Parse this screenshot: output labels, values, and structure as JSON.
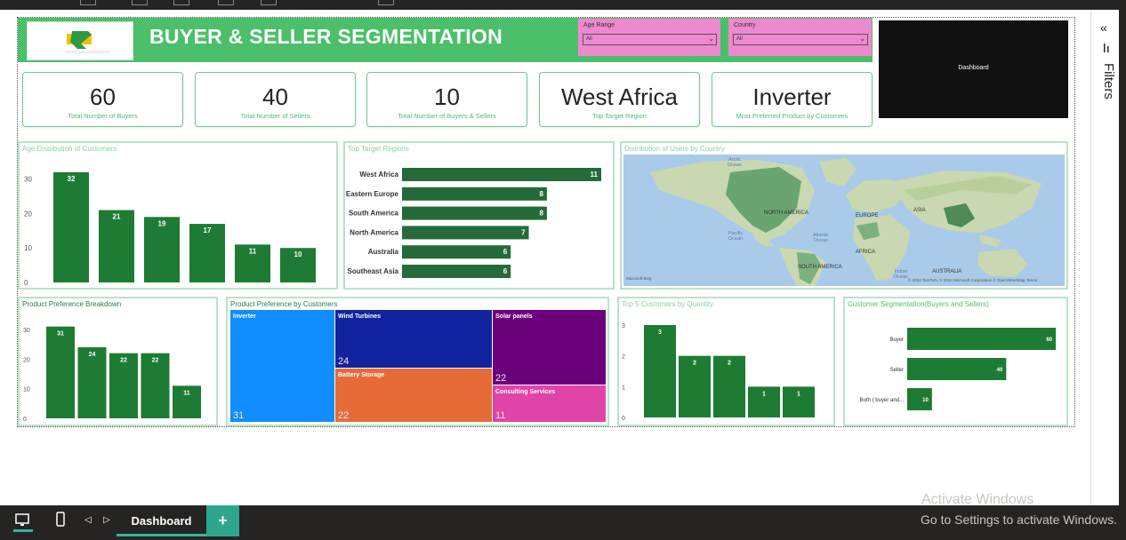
{
  "header": {
    "title": "BUYER & SELLER SEGMENTATION",
    "logo_text": "RENERGY HUB",
    "brand_color": "#4cbf6a"
  },
  "slicers": [
    {
      "title": "Age Range",
      "value": "All"
    },
    {
      "title": "Country",
      "value": "All"
    }
  ],
  "dashboard_button": "Dashboard",
  "kpis": [
    {
      "value": "60",
      "label": "Total Number of Buyers"
    },
    {
      "value": "40",
      "label": "Total Number of Sellers"
    },
    {
      "value": "10",
      "label": "Total Number of  Buyers & Sellers"
    },
    {
      "value": "West Africa",
      "label": "Top Target Region"
    },
    {
      "value": "Inverter",
      "label": "Most Preferred Product by Customers"
    }
  ],
  "filters_pane": {
    "label": "Filters",
    "collapse_icon": "chevron-double-left-icon"
  },
  "charts": {
    "age_distribution": {
      "title": "Age Distribution of Customers",
      "chart_data": {
        "type": "bar",
        "values": [
          32,
          21,
          19,
          17,
          11,
          10
        ],
        "yticks": [
          "30",
          "20",
          "10",
          "0"
        ],
        "ylim": [
          0,
          33
        ]
      }
    },
    "top_regions": {
      "title": "Top Target Regions",
      "chart_data": {
        "type": "bar",
        "orientation": "horizontal",
        "categories": [
          "West Africa",
          "Eastern Europe",
          "South America",
          "North America",
          "Australia",
          "Southeast Asia"
        ],
        "values": [
          11,
          8,
          8,
          7,
          6,
          6
        ]
      }
    },
    "users_map": {
      "title": "Distribution of Users by Country",
      "labels": [
        "NORTH AMERICA",
        "EUROPE",
        "ASIA",
        "AFRICA",
        "SOUTH AMERICA",
        "AUSTRALIA"
      ],
      "oceans": [
        "Arctic Ocean",
        "Pacific Ocean",
        "Atlantic Ocean",
        "Indian Ocean"
      ],
      "attribution": "© 2024 TomTom, © 2024 Microsoft Corporation  © OpenStreetMap  Terms",
      "bing": "Microsoft Bing"
    },
    "product_breakdown": {
      "title": "Product Preference Breakdown",
      "chart_data": {
        "type": "bar",
        "values": [
          31,
          24,
          22,
          22,
          11
        ],
        "yticks": [
          "30",
          "20",
          "10",
          "0"
        ],
        "ylim": [
          0,
          33
        ]
      }
    },
    "product_treemap": {
      "title": "Product Preference by Customers",
      "chart_data": {
        "type": "treemap",
        "categories": [
          "Inverter",
          "Wind Turbines",
          "Solar panels",
          "Battery Storage",
          "Consulting Services"
        ],
        "values": [
          31,
          24,
          22,
          22,
          11
        ]
      },
      "colors": [
        "#118dff",
        "#12239e",
        "#6b007b",
        "#e66c37",
        "#e044a7"
      ]
    },
    "top5_customers": {
      "title": "Top 5 Customers by Quantity",
      "chart_data": {
        "type": "bar",
        "values": [
          3,
          2,
          2,
          1,
          1
        ],
        "yticks": [
          "3",
          "2",
          "1",
          "0"
        ],
        "ylim": [
          0,
          3
        ]
      }
    },
    "segmentation": {
      "title": "Customer Segmentation(Buyers and Sellers)",
      "chart_data": {
        "type": "bar",
        "orientation": "horizontal",
        "categories": [
          "Buyer",
          "Seller",
          "Both ( buyer and..."
        ],
        "values": [
          60,
          40,
          10
        ]
      }
    }
  },
  "bottom_bar": {
    "tab": "Dashboard",
    "add": "+"
  },
  "watermark": {
    "line1": "Activate Windows",
    "line2": "Go to Settings to activate Windows."
  }
}
